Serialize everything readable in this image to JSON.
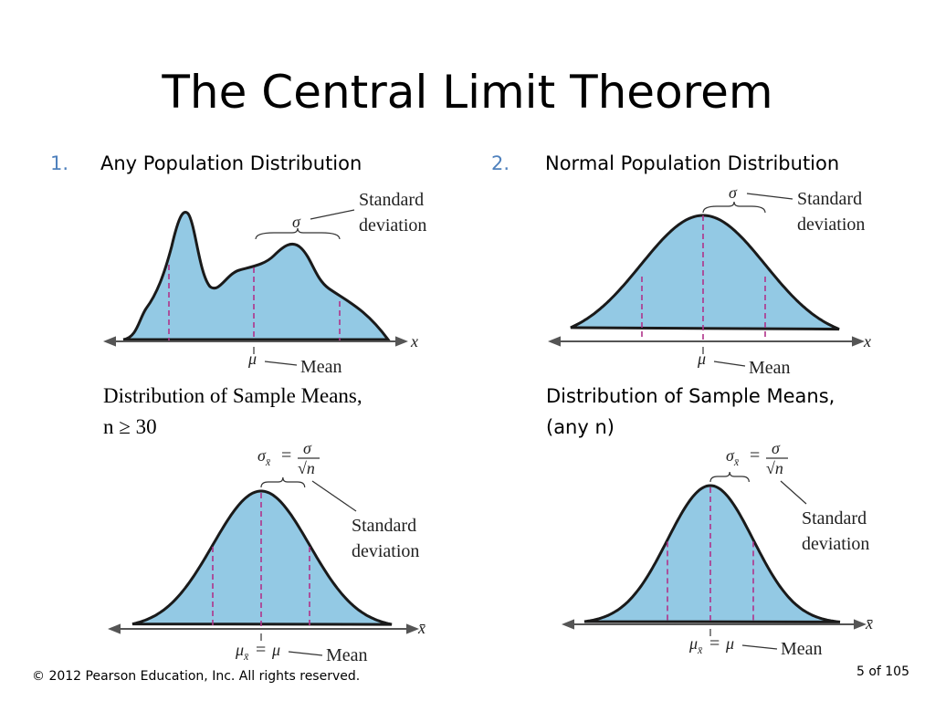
{
  "title": "The Central Limit Theorem",
  "panels": [
    {
      "number": "1.",
      "heading": "Any Population Distribution",
      "population": {
        "sigma": "σ",
        "sd_label": [
          "Standard",
          "deviation"
        ],
        "mu": "μ",
        "mean_label": "Mean",
        "axis_label": "x"
      },
      "caption": [
        "Distribution of Sample Means,",
        "n ≥ 30"
      ],
      "sampling": {
        "sigma": "σ",
        "sub": "x̄",
        "equals": "=",
        "numerator": "σ",
        "denominator": "√n",
        "sd_label": [
          "Standard",
          "deviation"
        ],
        "mu": "μ",
        "mu_sub": "x̄",
        "mu_equals": "=",
        "mu_rhs": "μ",
        "mean_label": "Mean",
        "axis_label": "x̄"
      }
    },
    {
      "number": "2.",
      "heading": "Normal Population Distribution",
      "population": {
        "sigma": "σ",
        "sd_label": [
          "Standard",
          "deviation"
        ],
        "mu": "μ",
        "mean_label": "Mean",
        "axis_label": "x"
      },
      "caption": [
        "Distribution of Sample Means,",
        "(any n)"
      ],
      "sampling": {
        "sigma": "σ",
        "sub": "x̄",
        "equals": "=",
        "numerator": "σ",
        "denominator": "√n",
        "sd_label": [
          "Standard",
          "deviation"
        ],
        "mu": "μ",
        "mu_sub": "x̄",
        "mu_equals": "=",
        "mu_rhs": "μ",
        "mean_label": "Mean",
        "axis_label": "x̄"
      }
    }
  ],
  "footer": {
    "copyright": "© 2012 Pearson Education, Inc. All rights reserved.",
    "page": "5 of 105"
  }
}
